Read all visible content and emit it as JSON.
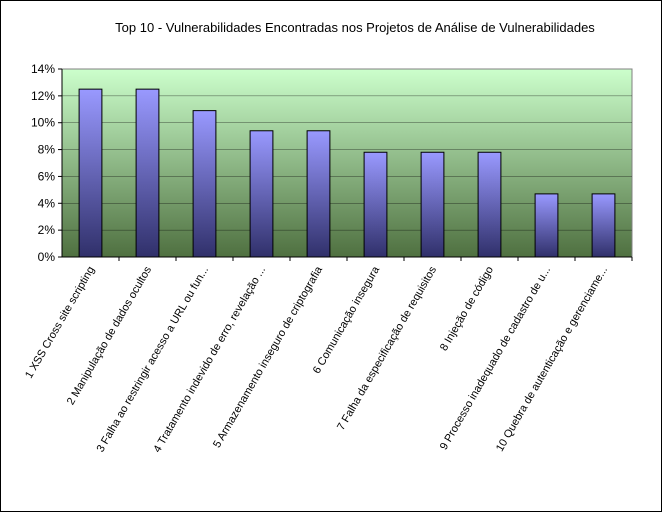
{
  "chart_data": {
    "type": "bar",
    "title": "Top 10 - Vulnerabilidades Encontradas nos Projetos de Análise de Vulnerabilidades",
    "xlabel": "",
    "ylabel": "",
    "ylim": [
      0,
      14
    ],
    "y_ticks": [
      "0%",
      "2%",
      "4%",
      "6%",
      "8%",
      "10%",
      "12%",
      "14%"
    ],
    "grid": true,
    "legend": "none",
    "categories": [
      "1 XSS Cross site scripting",
      "2 Manipulação de dados ocultos",
      "3 Falha ao restringir acesso a URL ou fun...",
      "4 Tratamento indevido de erro, revelação ...",
      "5 Armazenamento inseguro de criptografia",
      "6 Comunicação insegura",
      "7 Falha da especificação de requisitos",
      "8 Injeção de código",
      "9 Processo inadequado de cadastro de u...",
      "10 Quebra de autenticação e gerenciame..."
    ],
    "values": [
      12.5,
      12.5,
      10.9,
      9.4,
      9.4,
      7.8,
      7.8,
      7.8,
      4.7,
      4.7
    ],
    "colors": {
      "plot_top": "#ccffcc",
      "plot_bottom": "#4f7040",
      "bar_top": "#9999ff",
      "bar_bottom": "#30306a",
      "grid": "#000000"
    }
  }
}
